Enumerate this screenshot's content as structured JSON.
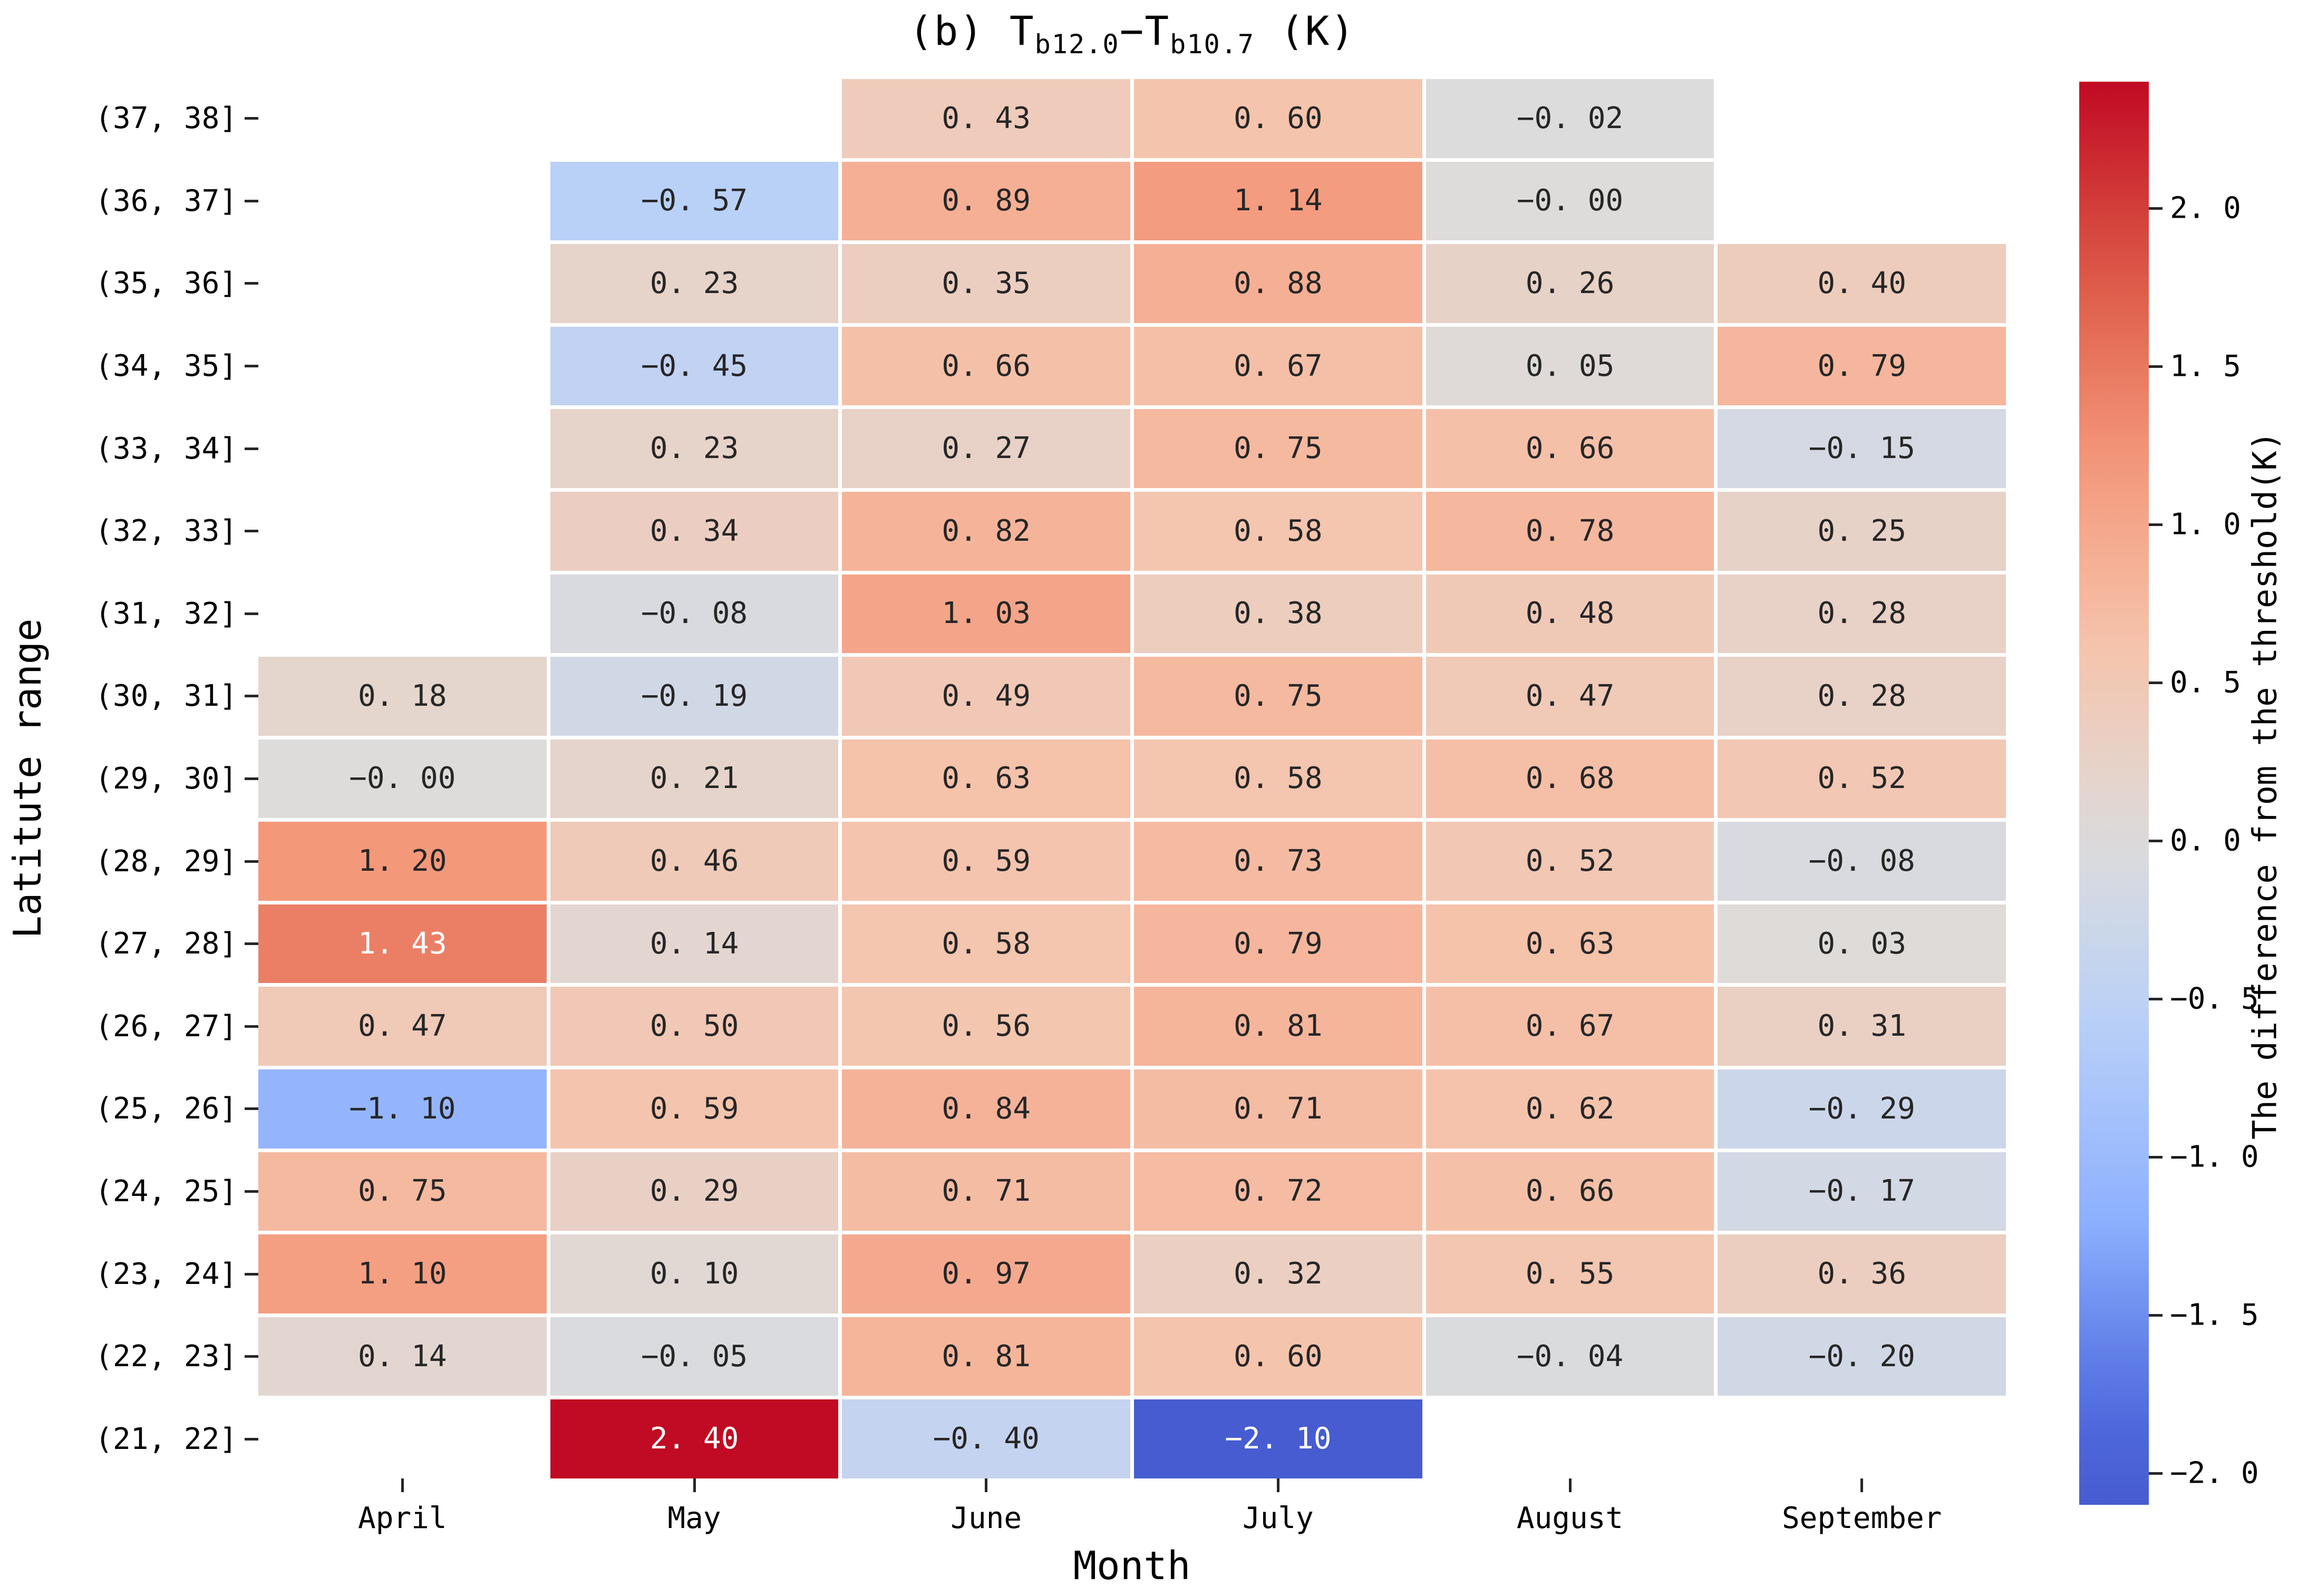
{
  "figure": {
    "title": {
      "part1": "(b) T",
      "sub1": "b12.0",
      "part2": "−T",
      "sub2": "b10.7",
      "part3": " (K)"
    },
    "xlabel": "Month",
    "ylabel": "Latitute range"
  },
  "chart_data": {
    "type": "heatmap",
    "title": "(b) Tb12.0-Tb10.7 (K)",
    "xlabel": "Month",
    "ylabel": "Latitute range",
    "columns": [
      "April",
      "May",
      "June",
      "July",
      "August",
      "September"
    ],
    "rows": [
      {
        "label": "(37, 38]",
        "values": [
          null,
          null,
          "0.43",
          "0.60",
          "-0.02",
          null
        ]
      },
      {
        "label": "(36, 37]",
        "values": [
          null,
          "-0.57",
          "0.89",
          "1.14",
          "-0.00",
          null
        ]
      },
      {
        "label": "(35, 36]",
        "values": [
          null,
          "0.23",
          "0.35",
          "0.88",
          "0.26",
          "0.40"
        ]
      },
      {
        "label": "(34, 35]",
        "values": [
          null,
          "-0.45",
          "0.66",
          "0.67",
          "0.05",
          "0.79"
        ]
      },
      {
        "label": "(33, 34]",
        "values": [
          null,
          "0.23",
          "0.27",
          "0.75",
          "0.66",
          "-0.15"
        ]
      },
      {
        "label": "(32, 33]",
        "values": [
          null,
          "0.34",
          "0.82",
          "0.58",
          "0.78",
          "0.25"
        ]
      },
      {
        "label": "(31, 32]",
        "values": [
          null,
          "-0.08",
          "1.03",
          "0.38",
          "0.48",
          "0.28"
        ]
      },
      {
        "label": "(30, 31]",
        "values": [
          "0.18",
          "-0.19",
          "0.49",
          "0.75",
          "0.47",
          "0.28"
        ]
      },
      {
        "label": "(29, 30]",
        "values": [
          "-0.00",
          "0.21",
          "0.63",
          "0.58",
          "0.68",
          "0.52"
        ]
      },
      {
        "label": "(28, 29]",
        "values": [
          "1.20",
          "0.46",
          "0.59",
          "0.73",
          "0.52",
          "-0.08"
        ]
      },
      {
        "label": "(27, 28]",
        "values": [
          "1.43",
          "0.14",
          "0.58",
          "0.79",
          "0.63",
          "0.03"
        ]
      },
      {
        "label": "(26, 27]",
        "values": [
          "0.47",
          "0.50",
          "0.56",
          "0.81",
          "0.67",
          "0.31"
        ]
      },
      {
        "label": "(25, 26]",
        "values": [
          "-1.10",
          "0.59",
          "0.84",
          "0.71",
          "0.62",
          "-0.29"
        ]
      },
      {
        "label": "(24, 25]",
        "values": [
          "0.75",
          "0.29",
          "0.71",
          "0.72",
          "0.66",
          "-0.17"
        ]
      },
      {
        "label": "(23, 24]",
        "values": [
          "1.10",
          "0.10",
          "0.97",
          "0.32",
          "0.55",
          "0.36"
        ]
      },
      {
        "label": "(22, 23]",
        "values": [
          "0.14",
          "-0.05",
          "0.81",
          "0.60",
          "-0.04",
          "-0.20"
        ]
      },
      {
        "label": "(21, 22]",
        "values": [
          null,
          "2.40",
          "-0.40",
          "-2.10",
          null,
          null
        ]
      }
    ],
    "colorbar": {
      "label": "The difference from the threshold(K)",
      "ticks": [
        "2.0",
        "1.5",
        "1.0",
        "0.5",
        "0.0",
        "-0.5",
        "-1.0",
        "-1.5",
        "-2.0"
      ],
      "vmin": -2.1,
      "vmax": 2.4,
      "center": 0,
      "colormap": "coolwarm",
      "slice_min": 0.0625,
      "colormap_anchors": [
        [
          59,
          76,
          192
        ],
        [
          80,
          107,
          223
        ],
        [
          141,
          176,
          254
        ],
        [
          183,
          207,
          249
        ],
        [
          221,
          220,
          219
        ],
        [
          245,
          196,
          173
        ],
        [
          244,
          152,
          122
        ],
        [
          220,
          87,
          70
        ],
        [
          193,
          10,
          35
        ]
      ],
      "annotation_dark_text": "#262626",
      "annotation_light_text": "#ffffff"
    },
    "grid": false,
    "legend_position": "right-colorbar"
  }
}
